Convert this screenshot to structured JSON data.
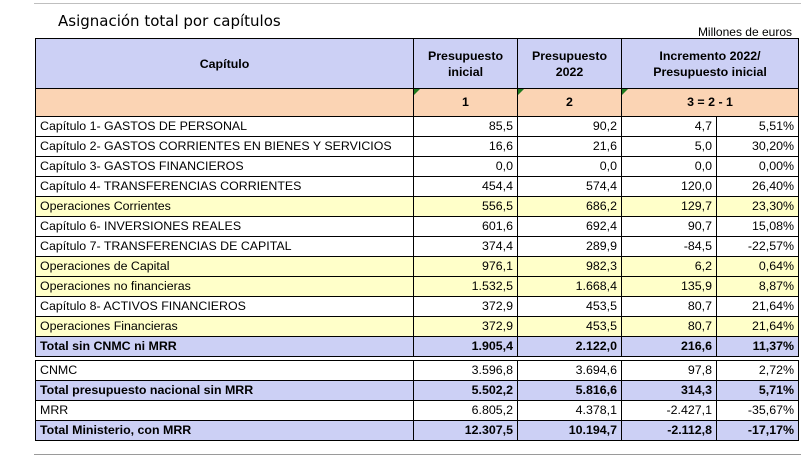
{
  "title": "Asignación total por capítulos",
  "units": "Millones de euros",
  "columns": {
    "capitulo": "Capítulo",
    "presupuesto_inicial": "Presupuesto inicial",
    "presupuesto_2022": "Presupuesto 2022",
    "incremento": "Incremento 2022/ Presupuesto inicial"
  },
  "index_row": [
    "1",
    "2",
    "3 = 2 - 1"
  ],
  "rows": [
    {
      "label": "Capítulo 1- GASTOS DE PERSONAL",
      "c1": "85,5",
      "c2": "90,2",
      "c3": "4,7",
      "pct": "5,51%",
      "kind": "normal"
    },
    {
      "label": "Capítulo 2- GASTOS CORRIENTES EN BIENES Y SERVICIOS",
      "c1": "16,6",
      "c2": "21,6",
      "c3": "5,0",
      "pct": "30,20%",
      "kind": "normal"
    },
    {
      "label": "Capítulo 3- GASTOS FINANCIEROS",
      "c1": "0,0",
      "c2": "0,0",
      "c3": "0,0",
      "pct": "0,00%",
      "kind": "normal"
    },
    {
      "label": "Capítulo 4- TRANSFERENCIAS CORRIENTES",
      "c1": "454,4",
      "c2": "574,4",
      "c3": "120,0",
      "pct": "26,40%",
      "kind": "normal"
    },
    {
      "label": "Operaciones Corrientes",
      "c1": "556,5",
      "c2": "686,2",
      "c3": "129,7",
      "pct": "23,30%",
      "kind": "sub"
    },
    {
      "label": "Capítulo 6- INVERSIONES REALES",
      "c1": "601,6",
      "c2": "692,4",
      "c3": "90,7",
      "pct": "15,08%",
      "kind": "normal"
    },
    {
      "label": "Capítulo 7- TRANSFERENCIAS DE CAPITAL",
      "c1": "374,4",
      "c2": "289,9",
      "c3": "-84,5",
      "pct": "-22,57%",
      "kind": "normal"
    },
    {
      "label": "Operaciones de Capital",
      "c1": "976,1",
      "c2": "982,3",
      "c3": "6,2",
      "pct": "0,64%",
      "kind": "sub"
    },
    {
      "label": "Operaciones no financieras",
      "c1": "1.532,5",
      "c2": "1.668,4",
      "c3": "135,9",
      "pct": "8,87%",
      "kind": "sub"
    },
    {
      "label": "Capítulo 8- ACTIVOS FINANCIEROS",
      "c1": "372,9",
      "c2": "453,5",
      "c3": "80,7",
      "pct": "21,64%",
      "kind": "normal"
    },
    {
      "label": "Operaciones Financieras",
      "c1": "372,9",
      "c2": "453,5",
      "c3": "80,7",
      "pct": "21,64%",
      "kind": "sub"
    },
    {
      "label": "Total sin CNMC ni MRR",
      "c1": "1.905,4",
      "c2": "2.122,0",
      "c3": "216,6",
      "pct": "11,37%",
      "kind": "tot"
    },
    {
      "kind": "spacer"
    },
    {
      "label": "CNMC",
      "c1": "3.596,8",
      "c2": "3.694,6",
      "c3": "97,8",
      "pct": "2,72%",
      "kind": "normal"
    },
    {
      "label": "Total presupuesto nacional sin MRR",
      "c1": "5.502,2",
      "c2": "5.816,6",
      "c3": "314,3",
      "pct": "5,71%",
      "kind": "tot"
    },
    {
      "label": "MRR",
      "c1": "6.805,2",
      "c2": "4.378,1",
      "c3": "-2.427,1",
      "pct": "-35,67%",
      "kind": "normal"
    },
    {
      "label": "Total Ministerio, con MRR",
      "c1": "12.307,5",
      "c2": "10.194,7",
      "c3": "-2.112,8",
      "pct": "-17,17%",
      "kind": "tot"
    }
  ]
}
